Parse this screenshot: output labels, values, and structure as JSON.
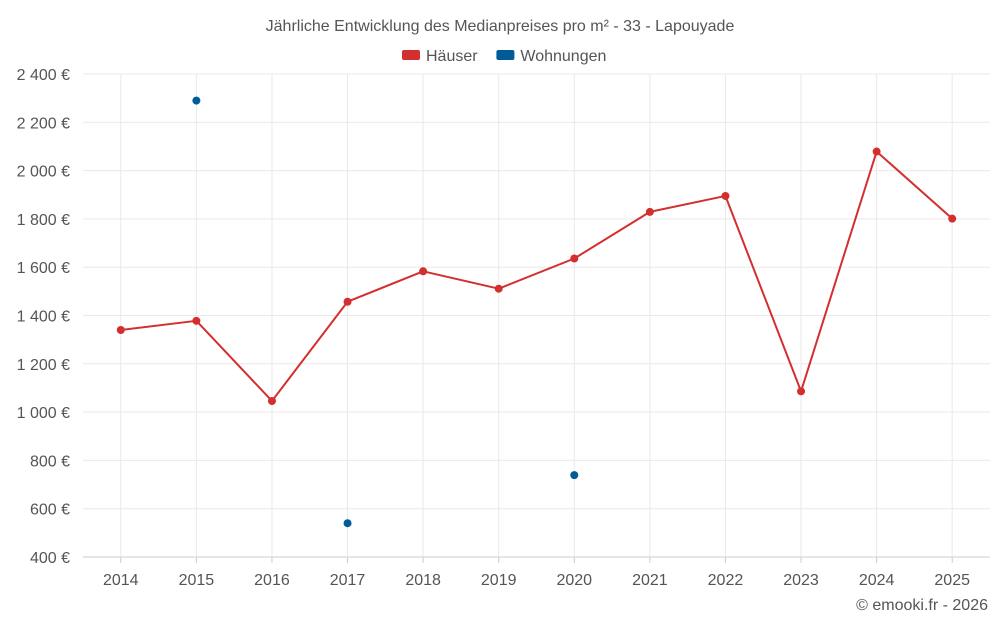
{
  "chart_data": {
    "type": "line",
    "title": "Jährliche Entwicklung des Medianpreises pro m² - 33 - Lapouyade",
    "categories": [
      "2014",
      "2015",
      "2016",
      "2017",
      "2018",
      "2019",
      "2020",
      "2021",
      "2022",
      "2023",
      "2024",
      "2025"
    ],
    "series": [
      {
        "name": "Häuser",
        "color": "#d32f2f",
        "values": [
          1340,
          1378,
          1046,
          1457,
          1583,
          1511,
          1636,
          1829,
          1895,
          1086,
          2079,
          1801
        ],
        "connected": true
      },
      {
        "name": "Wohnungen",
        "color": "#005b96",
        "values": [
          null,
          2290,
          null,
          540,
          null,
          null,
          739,
          null,
          null,
          null,
          null,
          null
        ],
        "connected": false
      }
    ],
    "ylim": [
      400,
      2400
    ],
    "yticks": [
      400,
      600,
      800,
      1000,
      1200,
      1400,
      1600,
      1800,
      2000,
      2200,
      2400
    ],
    "ytick_labels": [
      "400 €",
      "600 €",
      "800 €",
      "1 000 €",
      "1 200 €",
      "1 400 €",
      "1 600 €",
      "1 800 €",
      "2 000 €",
      "2 200 €",
      "2 400 €"
    ],
    "xlabel": "",
    "ylabel": "",
    "grid": true,
    "legend_position": "top-center"
  },
  "footer": "© emooki.fr - 2026"
}
